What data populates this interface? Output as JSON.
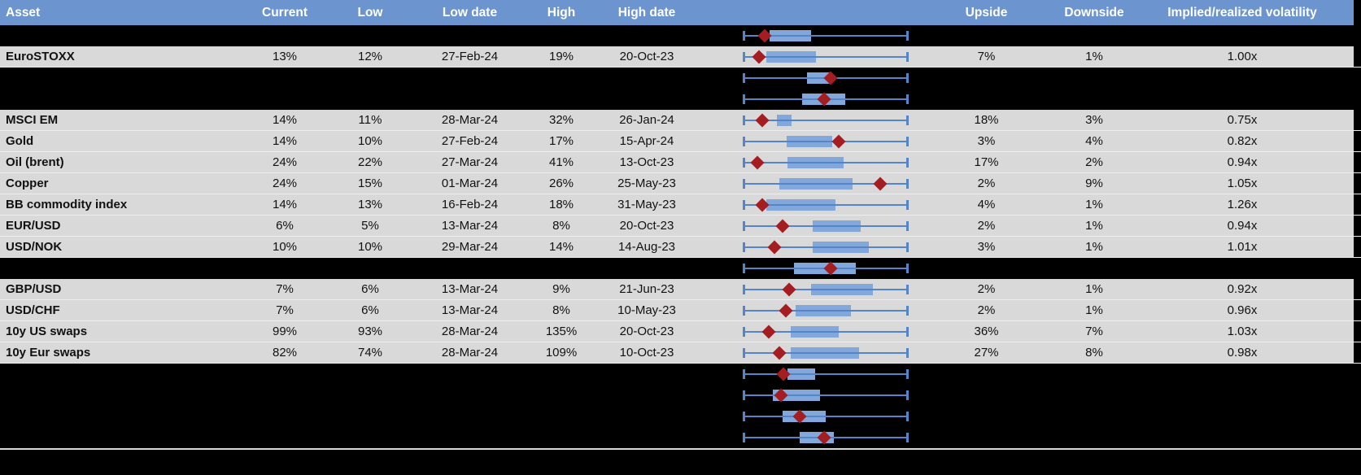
{
  "header": {
    "columns": [
      "Asset",
      "Current",
      "Low",
      "Low date",
      "High",
      "High date",
      "Upside",
      "Downside",
      "Implied/realized volatility"
    ]
  },
  "colors": {
    "header_bg": "#6C95CF",
    "row_bg": "#D9D9D9",
    "hidden_row_bg": "#000000",
    "whisker_line": "#5585C6",
    "box_fill": "#82A8DB",
    "diamond": "#A41D20",
    "divider": "#D9D9D9"
  },
  "boxplot_track": {
    "note": "each row shows low-to-high range whisker 0..1, interquartile box and current-value diamond as fractions of that range"
  },
  "rows": [
    {
      "type": "hidden",
      "plot": {
        "box": [
          0.16,
          0.41
        ],
        "diamond": 0.13
      }
    },
    {
      "type": "data",
      "asset": "EuroSTOXX",
      "current": "13%",
      "low": "12%",
      "low_date": "27-Feb-24",
      "high": "19%",
      "high_date": "20-Oct-23",
      "upside": "7%",
      "downside": "1%",
      "implied_realized": "1.00x",
      "plot": {
        "box": [
          0.14,
          0.44
        ],
        "diamond": 0.1
      }
    },
    {
      "type": "hidden",
      "plot": {
        "box": [
          0.385,
          0.53
        ],
        "diamond": 0.53
      }
    },
    {
      "type": "hidden",
      "plot": {
        "box": [
          0.36,
          0.62
        ],
        "diamond": 0.49
      }
    },
    {
      "type": "data",
      "asset": "MSCI EM",
      "current": "14%",
      "low": "11%",
      "low_date": "28-Mar-24",
      "high": "32%",
      "high_date": "26-Jan-24",
      "upside": "18%",
      "downside": "3%",
      "implied_realized": "0.75x",
      "plot": {
        "box": [
          0.205,
          0.295
        ],
        "diamond": 0.12
      }
    },
    {
      "type": "data",
      "asset": "Gold",
      "current": "14%",
      "low": "10%",
      "low_date": "27-Feb-24",
      "high": "17%",
      "high_date": "15-Apr-24",
      "upside": "3%",
      "downside": "4%",
      "implied_realized": "0.82x",
      "plot": {
        "box": [
          0.265,
          0.54
        ],
        "diamond": 0.58
      }
    },
    {
      "type": "data",
      "asset": "Oil (brent)",
      "current": "24%",
      "low": "22%",
      "low_date": "27-Mar-24",
      "high": "41%",
      "high_date": "13-Oct-23",
      "upside": "17%",
      "downside": "2%",
      "implied_realized": "0.94x",
      "plot": {
        "box": [
          0.27,
          0.61
        ],
        "diamond": 0.09
      }
    },
    {
      "type": "data",
      "asset": "Copper",
      "current": "24%",
      "low": "15%",
      "low_date": "01-Mar-24",
      "high": "26%",
      "high_date": "25-May-23",
      "upside": "2%",
      "downside": "9%",
      "implied_realized": "1.05x",
      "plot": {
        "box": [
          0.22,
          0.66
        ],
        "diamond": 0.83
      }
    },
    {
      "type": "data",
      "asset": "BB commodity index",
      "current": "14%",
      "low": "13%",
      "low_date": "16-Feb-24",
      "high": "18%",
      "high_date": "31-May-23",
      "upside": "4%",
      "downside": "1%",
      "implied_realized": "1.26x",
      "plot": {
        "box": [
          0.14,
          0.56
        ],
        "diamond": 0.12
      }
    },
    {
      "type": "data",
      "asset": "EUR/USD",
      "current": "6%",
      "low": "5%",
      "low_date": "13-Mar-24",
      "high": "8%",
      "high_date": "20-Oct-23",
      "upside": "2%",
      "downside": "1%",
      "implied_realized": "0.94x",
      "plot": {
        "box": [
          0.42,
          0.71
        ],
        "diamond": 0.24
      }
    },
    {
      "type": "data",
      "asset": "USD/NOK",
      "current": "10%",
      "low": "10%",
      "low_date": "29-Mar-24",
      "high": "14%",
      "high_date": "14-Aug-23",
      "upside": "3%",
      "downside": "1%",
      "implied_realized": "1.01x",
      "plot": {
        "box": [
          0.42,
          0.76
        ],
        "diamond": 0.19
      }
    },
    {
      "type": "hidden",
      "plot": {
        "box": [
          0.31,
          0.68
        ],
        "diamond": 0.53
      }
    },
    {
      "type": "data",
      "asset": "GBP/USD",
      "current": "7%",
      "low": "6%",
      "low_date": "13-Mar-24",
      "high": "9%",
      "high_date": "21-Jun-23",
      "upside": "2%",
      "downside": "1%",
      "implied_realized": "0.92x",
      "plot": {
        "box": [
          0.41,
          0.785
        ],
        "diamond": 0.28
      }
    },
    {
      "type": "data",
      "asset": "USD/CHF",
      "current": "7%",
      "low": "6%",
      "low_date": "13-Mar-24",
      "high": "8%",
      "high_date": "10-May-23",
      "upside": "2%",
      "downside": "1%",
      "implied_realized": "0.96x",
      "plot": {
        "box": [
          0.32,
          0.65
        ],
        "diamond": 0.26
      }
    },
    {
      "type": "data",
      "asset": "10y US swaps",
      "current": "99%",
      "low": "93%",
      "low_date": "28-Mar-24",
      "high": "135%",
      "high_date": "20-Oct-23",
      "upside": "36%",
      "downside": "7%",
      "implied_realized": "1.03x",
      "plot": {
        "box": [
          0.29,
          0.58
        ],
        "diamond": 0.157
      }
    },
    {
      "type": "data",
      "asset": "10y Eur swaps",
      "current": "82%",
      "low": "74%",
      "low_date": "28-Mar-24",
      "high": "109%",
      "high_date": "10-Oct-23",
      "upside": "27%",
      "downside": "8%",
      "implied_realized": "0.98x",
      "plot": {
        "box": [
          0.29,
          0.7
        ],
        "diamond": 0.22
      }
    },
    {
      "type": "hidden",
      "plot": {
        "box": [
          0.27,
          0.435
        ],
        "diamond": 0.245
      }
    },
    {
      "type": "hidden",
      "plot": {
        "box": [
          0.18,
          0.465
        ],
        "diamond": 0.23
      }
    },
    {
      "type": "hidden",
      "plot": {
        "box": [
          0.24,
          0.5
        ],
        "diamond": 0.343
      }
    },
    {
      "type": "hidden",
      "plot": {
        "box": [
          0.345,
          0.55
        ],
        "diamond": 0.49
      }
    }
  ]
}
